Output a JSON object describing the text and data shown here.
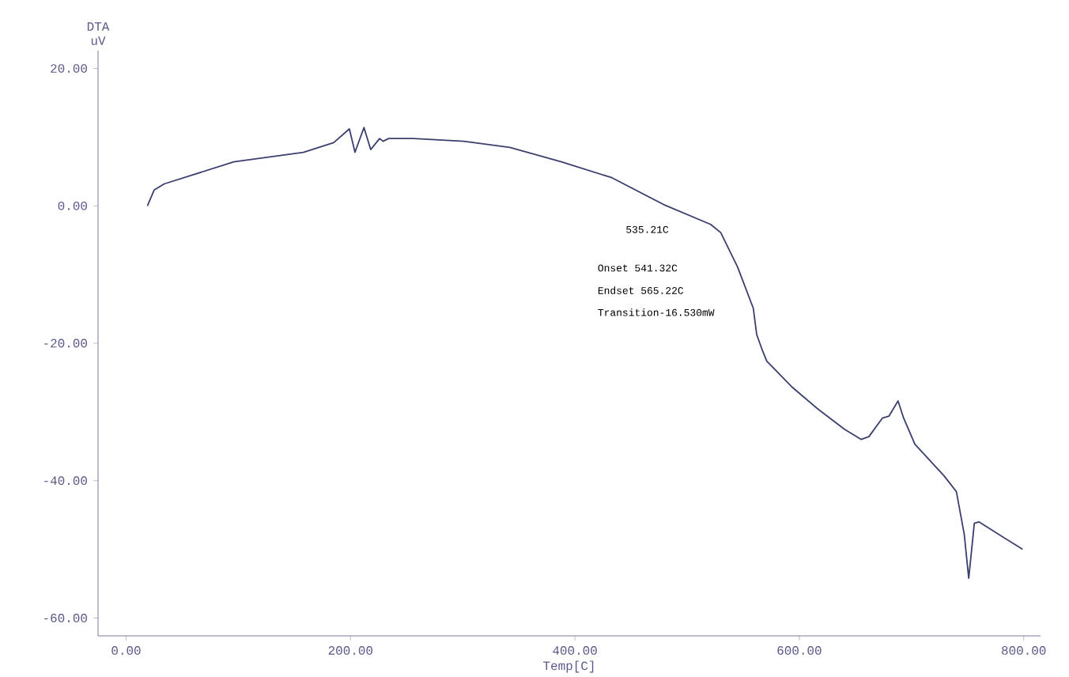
{
  "chart_data": {
    "type": "line",
    "xlabel": "Temp[C]",
    "ylabel": "DTA uV",
    "xlim": [
      -25,
      815
    ],
    "ylim": [
      -62.6,
      22.6
    ],
    "xticks": [
      {
        "value": 0,
        "label": "0.00"
      },
      {
        "value": 200,
        "label": "200.00"
      },
      {
        "value": 400,
        "label": "400.00"
      },
      {
        "value": 600,
        "label": "600.00"
      },
      {
        "value": 800,
        "label": "800.00"
      }
    ],
    "yticks": [
      {
        "value": -60,
        "label": "-60.00"
      },
      {
        "value": -40,
        "label": "-40.00"
      },
      {
        "value": -20,
        "label": "-20.00"
      },
      {
        "value": 0,
        "label": "0.00"
      },
      {
        "value": 20,
        "label": "20.00"
      }
    ],
    "marker": "none",
    "line_style": "solid",
    "series": [
      {
        "color": "#3a3f6e",
        "x": [
          19,
          25,
          34,
          96,
          158,
          185,
          199,
          204,
          212,
          218,
          226,
          229,
          234,
          256,
          301,
          342,
          388,
          433,
          479,
          521,
          530,
          545,
          559,
          562,
          567,
          571,
          593,
          616,
          640,
          655,
          662,
          674,
          680,
          688,
          693,
          703,
          729,
          740,
          747,
          751,
          756,
          760,
          799
        ],
        "values": [
          0,
          2.3,
          3.2,
          6.4,
          7.8,
          9.2,
          11.2,
          7.8,
          11.4,
          8.2,
          9.8,
          9.4,
          9.8,
          9.8,
          9.4,
          8.5,
          6.4,
          4.1,
          0.2,
          -2.7,
          -3.9,
          -8.9,
          -14.9,
          -18.7,
          -21,
          -22.6,
          -26.3,
          -29.5,
          -32.5,
          -34,
          -33.6,
          -30.9,
          -30.6,
          -28.4,
          -30.9,
          -34.7,
          -39.3,
          -41.6,
          -47.8,
          -54.2,
          -46.2,
          -46,
          -50
        ]
      }
    ],
    "annotations": [
      "535.21C",
      "Onset    541.32C",
      "Endset    565.22C",
      "Transition-16.530mW"
    ]
  }
}
